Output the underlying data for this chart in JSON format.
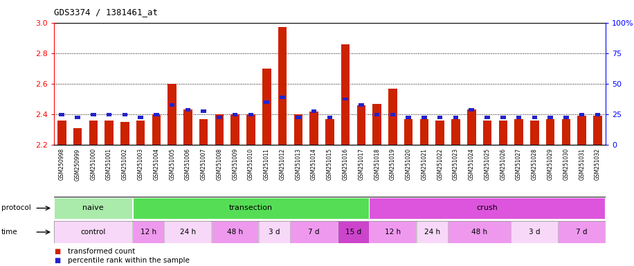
{
  "title": "GDS3374 / 1381461_at",
  "samples": [
    "GSM250998",
    "GSM250999",
    "GSM251000",
    "GSM251001",
    "GSM251002",
    "GSM251003",
    "GSM251004",
    "GSM251005",
    "GSM251006",
    "GSM251007",
    "GSM251008",
    "GSM251009",
    "GSM251010",
    "GSM251011",
    "GSM251012",
    "GSM251013",
    "GSM251014",
    "GSM251015",
    "GSM251016",
    "GSM251017",
    "GSM251018",
    "GSM251019",
    "GSM251020",
    "GSM251021",
    "GSM251022",
    "GSM251023",
    "GSM251024",
    "GSM251025",
    "GSM251026",
    "GSM251027",
    "GSM251028",
    "GSM251029",
    "GSM251030",
    "GSM251031",
    "GSM251032"
  ],
  "red_values": [
    2.36,
    2.31,
    2.36,
    2.36,
    2.35,
    2.36,
    2.4,
    2.6,
    2.43,
    2.37,
    2.4,
    2.4,
    2.4,
    2.7,
    2.97,
    2.4,
    2.42,
    2.37,
    2.86,
    2.46,
    2.47,
    2.57,
    2.37,
    2.37,
    2.36,
    2.37,
    2.43,
    2.36,
    2.36,
    2.37,
    2.36,
    2.37,
    2.37,
    2.39,
    2.39
  ],
  "blue_values": [
    2.4,
    2.38,
    2.4,
    2.4,
    2.4,
    2.38,
    2.4,
    2.46,
    2.43,
    2.42,
    2.38,
    2.4,
    2.4,
    2.48,
    2.51,
    2.38,
    2.42,
    2.38,
    2.5,
    2.46,
    2.4,
    2.4,
    2.38,
    2.38,
    2.38,
    2.38,
    2.43,
    2.38,
    2.38,
    2.38,
    2.38,
    2.38,
    2.38,
    2.4,
    2.4
  ],
  "ymin": 2.2,
  "ymax": 3.0,
  "yticks_red": [
    2.2,
    2.4,
    2.6,
    2.8,
    3.0
  ],
  "yticks_blue": [
    0,
    25,
    50,
    75,
    100
  ],
  "protocol_groups": [
    {
      "label": "naive",
      "start": 0,
      "end": 4,
      "color": "#aaeaaa"
    },
    {
      "label": "transection",
      "start": 5,
      "end": 19,
      "color": "#55dd55"
    },
    {
      "label": "crush",
      "start": 20,
      "end": 34,
      "color": "#dd55dd"
    }
  ],
  "time_groups": [
    {
      "label": "control",
      "start": 0,
      "end": 4,
      "color": "#f8d8f8"
    },
    {
      "label": "12 h",
      "start": 5,
      "end": 6,
      "color": "#ee99ee"
    },
    {
      "label": "24 h",
      "start": 7,
      "end": 9,
      "color": "#f8d8f8"
    },
    {
      "label": "48 h",
      "start": 10,
      "end": 12,
      "color": "#ee99ee"
    },
    {
      "label": "3 d",
      "start": 13,
      "end": 14,
      "color": "#f8d8f8"
    },
    {
      "label": "7 d",
      "start": 15,
      "end": 17,
      "color": "#ee99ee"
    },
    {
      "label": "15 d",
      "start": 18,
      "end": 19,
      "color": "#cc44cc"
    },
    {
      "label": "12 h",
      "start": 20,
      "end": 22,
      "color": "#ee99ee"
    },
    {
      "label": "24 h",
      "start": 23,
      "end": 24,
      "color": "#f8d8f8"
    },
    {
      "label": "48 h",
      "start": 25,
      "end": 28,
      "color": "#ee99ee"
    },
    {
      "label": "3 d",
      "start": 29,
      "end": 31,
      "color": "#f8d8f8"
    },
    {
      "label": "7 d",
      "start": 32,
      "end": 34,
      "color": "#ee99ee"
    }
  ],
  "bar_color_red": "#cc2200",
  "bar_color_blue": "#2222cc",
  "bar_width": 0.55,
  "legend_red": "transformed count",
  "legend_blue": "percentile rank within the sample",
  "tick_bg_color": "#d8d8d8"
}
